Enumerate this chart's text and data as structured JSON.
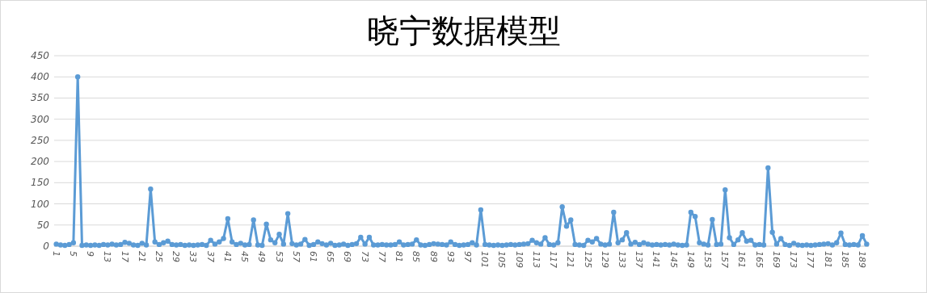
{
  "chart_data": {
    "type": "line",
    "title": "晓宁数据模型",
    "categories": [
      "1",
      null,
      null,
      null,
      "5",
      null,
      null,
      null,
      "9",
      null,
      null,
      null,
      "13",
      null,
      null,
      null,
      "17",
      null,
      null,
      null,
      "21",
      null,
      null,
      null,
      "25",
      null,
      null,
      null,
      "29",
      null,
      null,
      null,
      "33",
      null,
      null,
      null,
      "37",
      null,
      null,
      null,
      "41",
      null,
      null,
      null,
      "45",
      null,
      null,
      null,
      "49",
      null,
      null,
      null,
      "53",
      null,
      null,
      null,
      "57",
      null,
      null,
      null,
      "61",
      null,
      null,
      null,
      "65",
      null,
      null,
      null,
      "69",
      null,
      null,
      null,
      "73",
      null,
      null,
      null,
      "77",
      null,
      null,
      null,
      "81",
      null,
      null,
      null,
      "85",
      null,
      null,
      null,
      "89",
      null,
      null,
      null,
      "93",
      null,
      null,
      null,
      "97",
      null,
      null,
      null,
      "101",
      null,
      null,
      null,
      "105",
      null,
      null,
      null,
      "109",
      null,
      null,
      null,
      "113",
      null,
      null,
      null,
      "117",
      null,
      null,
      null,
      "121",
      null,
      null,
      null,
      "125",
      null,
      null,
      null,
      "129",
      null,
      null,
      null,
      "133",
      null,
      null,
      null,
      "137",
      null,
      null,
      null,
      "141",
      null,
      null,
      null,
      "145",
      null,
      null,
      null,
      "149",
      null,
      null,
      null,
      "153",
      null,
      null,
      null,
      "157",
      null,
      null,
      null,
      "161",
      null,
      null,
      null,
      "165",
      null,
      null,
      null,
      "169",
      null,
      null,
      null,
      "173",
      null,
      null,
      null,
      "177",
      null,
      null,
      null,
      "181",
      null,
      null,
      null,
      "185",
      null,
      null,
      null,
      "189",
      null
    ],
    "series": [
      {
        "color": "#5b9bd5",
        "values": [
          5,
          3,
          2,
          4,
          8,
          400,
          2,
          3,
          2,
          3,
          2,
          4,
          3,
          5,
          3,
          4,
          9,
          7,
          3,
          2,
          7,
          3,
          135,
          10,
          4,
          8,
          12,
          4,
          3,
          4,
          2,
          3,
          2,
          3,
          4,
          2,
          14,
          5,
          10,
          18,
          65,
          10,
          4,
          7,
          3,
          4,
          62,
          3,
          2,
          52,
          15,
          8,
          28,
          5,
          77,
          6,
          3,
          5,
          16,
          2,
          4,
          10,
          6,
          3,
          7,
          2,
          3,
          5,
          2,
          4,
          6,
          21,
          5,
          21,
          3,
          3,
          4,
          3,
          3,
          4,
          10,
          3,
          4,
          5,
          15,
          3,
          2,
          4,
          6,
          5,
          4,
          3,
          10,
          4,
          2,
          3,
          4,
          8,
          3,
          86,
          4,
          3,
          2,
          3,
          2,
          3,
          4,
          3,
          4,
          5,
          6,
          14,
          8,
          5,
          20,
          4,
          3,
          8,
          93,
          47,
          62,
          4,
          3,
          2,
          14,
          10,
          18,
          5,
          3,
          5,
          80,
          8,
          15,
          32,
          5,
          9,
          4,
          8,
          5,
          3,
          4,
          3,
          4,
          3,
          5,
          3,
          2,
          3,
          80,
          70,
          8,
          5,
          3,
          63,
          4,
          5,
          133,
          20,
          4,
          15,
          32,
          12,
          14,
          3,
          4,
          3,
          185,
          33,
          5,
          18,
          4,
          2,
          7,
          3,
          2,
          3,
          2,
          3,
          4,
          5,
          6,
          3,
          8,
          31,
          4,
          3,
          4,
          3,
          25,
          5
        ]
      }
    ],
    "ylim": [
      0,
      450
    ],
    "yticks": [
      0,
      50,
      100,
      150,
      200,
      250,
      300,
      350,
      400,
      450
    ],
    "grid": "y",
    "marker": "circle",
    "line_style": "solid"
  }
}
